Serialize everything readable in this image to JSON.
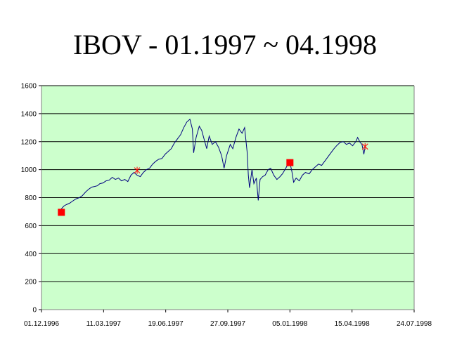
{
  "chart_data": {
    "type": "line",
    "title": "IBOV - 01.1997 ~ 04.1998",
    "xlabel": "",
    "ylabel": "",
    "x_dates": [
      "1996-12-01",
      "1998-07-24"
    ],
    "xlim": [
      "1996-12-01",
      "1998-07-24"
    ],
    "ylim": [
      0,
      1600
    ],
    "y_ticks": [
      0,
      200,
      400,
      600,
      800,
      1000,
      1200,
      1400,
      1600
    ],
    "x_ticks": [
      "01.12.1996",
      "11.03.1997",
      "19.06.1997",
      "27.09.1997",
      "05.01.1998",
      "15.04.1998",
      "24.07.1998"
    ],
    "x_tick_dates": [
      "1996-12-01",
      "1997-03-11",
      "1997-06-19",
      "1997-09-27",
      "1998-01-05",
      "1998-04-15",
      "1998-07-24"
    ],
    "grid": "horizontal",
    "legend": "none",
    "colors": {
      "plot_background": "#ccffcc",
      "line": "#000080",
      "square_marker": "#ff0000",
      "star_marker": "#ff0000",
      "gridline": "#000000"
    },
    "series": [
      {
        "points": [
          [
            "1997-01-02",
            720
          ],
          [
            "1997-01-06",
            740
          ],
          [
            "1997-01-10",
            750
          ],
          [
            "1997-01-15",
            760
          ],
          [
            "1997-01-20",
            775
          ],
          [
            "1997-01-25",
            790
          ],
          [
            "1997-01-31",
            800
          ],
          [
            "1997-02-05",
            815
          ],
          [
            "1997-02-10",
            840
          ],
          [
            "1997-02-15",
            860
          ],
          [
            "1997-02-20",
            875
          ],
          [
            "1997-02-25",
            880
          ],
          [
            "1997-03-01",
            885
          ],
          [
            "1997-03-05",
            900
          ],
          [
            "1997-03-10",
            905
          ],
          [
            "1997-03-15",
            920
          ],
          [
            "1997-03-20",
            925
          ],
          [
            "1997-03-25",
            945
          ],
          [
            "1997-03-30",
            930
          ],
          [
            "1997-04-04",
            940
          ],
          [
            "1997-04-09",
            920
          ],
          [
            "1997-04-14",
            930
          ],
          [
            "1997-04-19",
            915
          ],
          [
            "1997-04-24",
            960
          ],
          [
            "1997-04-29",
            980
          ],
          [
            "1997-05-04",
            960
          ],
          [
            "1997-05-09",
            950
          ],
          [
            "1997-05-14",
            980
          ],
          [
            "1997-05-19",
            1000
          ],
          [
            "1997-05-24",
            1010
          ],
          [
            "1997-05-29",
            1040
          ],
          [
            "1997-06-03",
            1060
          ],
          [
            "1997-06-08",
            1075
          ],
          [
            "1997-06-13",
            1080
          ],
          [
            "1997-06-18",
            1110
          ],
          [
            "1997-06-23",
            1130
          ],
          [
            "1997-06-28",
            1150
          ],
          [
            "1997-07-03",
            1190
          ],
          [
            "1997-07-08",
            1220
          ],
          [
            "1997-07-13",
            1250
          ],
          [
            "1997-07-18",
            1300
          ],
          [
            "1997-07-23",
            1340
          ],
          [
            "1997-07-28",
            1360
          ],
          [
            "1997-08-01",
            1290
          ],
          [
            "1997-08-03",
            1120
          ],
          [
            "1997-08-07",
            1230
          ],
          [
            "1997-08-12",
            1310
          ],
          [
            "1997-08-16",
            1280
          ],
          [
            "1997-08-19",
            1230
          ],
          [
            "1997-08-24",
            1150
          ],
          [
            "1997-08-28",
            1240
          ],
          [
            "1997-09-02",
            1180
          ],
          [
            "1997-09-07",
            1200
          ],
          [
            "1997-09-12",
            1160
          ],
          [
            "1997-09-17",
            1100
          ],
          [
            "1997-09-21",
            1010
          ],
          [
            "1997-09-25",
            1100
          ],
          [
            "1997-10-01",
            1180
          ],
          [
            "1997-10-05",
            1150
          ],
          [
            "1997-10-10",
            1230
          ],
          [
            "1997-10-15",
            1290
          ],
          [
            "1997-10-20",
            1260
          ],
          [
            "1997-10-24",
            1300
          ],
          [
            "1997-10-28",
            1130
          ],
          [
            "1997-10-30",
            960
          ],
          [
            "1997-11-01",
            870
          ],
          [
            "1997-11-05",
            1000
          ],
          [
            "1997-11-08",
            900
          ],
          [
            "1997-11-12",
            940
          ],
          [
            "1997-11-15",
            780
          ],
          [
            "1997-11-18",
            930
          ],
          [
            "1997-11-22",
            950
          ],
          [
            "1997-11-26",
            960
          ],
          [
            "1997-12-01",
            1000
          ],
          [
            "1997-12-05",
            1010
          ],
          [
            "1997-12-10",
            960
          ],
          [
            "1997-12-15",
            930
          ],
          [
            "1997-12-20",
            950
          ],
          [
            "1997-12-24",
            970
          ],
          [
            "1997-12-28",
            1000
          ],
          [
            "1998-01-02",
            1040
          ],
          [
            "1998-01-05",
            1050
          ],
          [
            "1998-01-08",
            990
          ],
          [
            "1998-01-11",
            910
          ],
          [
            "1998-01-15",
            940
          ],
          [
            "1998-01-20",
            920
          ],
          [
            "1998-01-25",
            960
          ],
          [
            "1998-01-30",
            980
          ],
          [
            "1998-02-05",
            970
          ],
          [
            "1998-02-10",
            1000
          ],
          [
            "1998-02-15",
            1020
          ],
          [
            "1998-02-20",
            1040
          ],
          [
            "1998-02-25",
            1030
          ],
          [
            "1998-03-02",
            1060
          ],
          [
            "1998-03-07",
            1090
          ],
          [
            "1998-03-12",
            1120
          ],
          [
            "1998-03-17",
            1150
          ],
          [
            "1998-03-22",
            1175
          ],
          [
            "1998-03-27",
            1195
          ],
          [
            "1998-04-01",
            1200
          ],
          [
            "1998-04-06",
            1180
          ],
          [
            "1998-04-11",
            1190
          ],
          [
            "1998-04-16",
            1170
          ],
          [
            "1998-04-21",
            1200
          ],
          [
            "1998-04-24",
            1230
          ],
          [
            "1998-04-28",
            1195
          ],
          [
            "1998-05-01",
            1180
          ],
          [
            "1998-05-04",
            1110
          ],
          [
            "1998-05-06",
            1160
          ]
        ]
      }
    ],
    "markers": [
      {
        "shape": "square",
        "x": "1997-01-02",
        "y": 695
      },
      {
        "shape": "star",
        "x": "1997-05-04",
        "y": 995
      },
      {
        "shape": "square",
        "x": "1998-01-05",
        "y": 1050
      },
      {
        "shape": "star",
        "x": "1998-05-06",
        "y": 1165
      }
    ]
  }
}
